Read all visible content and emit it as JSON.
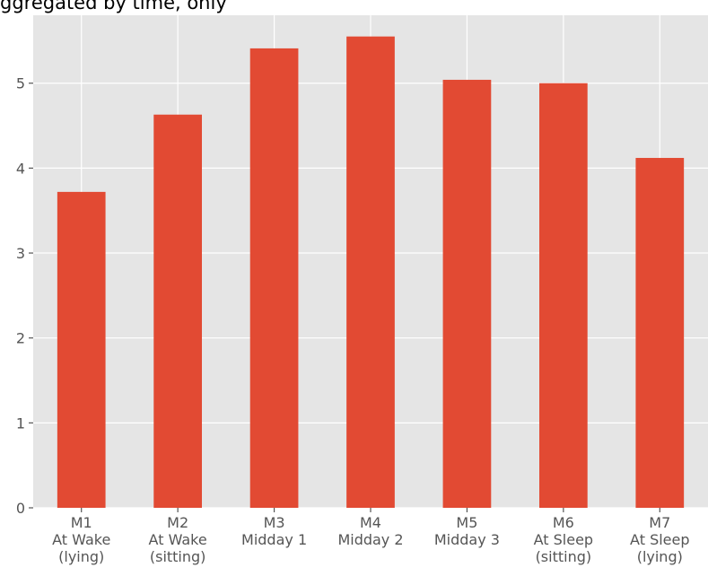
{
  "chart_data": {
    "type": "bar",
    "title": "ggregated by time, only",
    "categories": [
      [
        "M1",
        "At Wake",
        "(lying)"
      ],
      [
        "M2",
        "At Wake",
        "(sitting)"
      ],
      [
        "M3",
        "Midday 1"
      ],
      [
        "M4",
        "Midday 2"
      ],
      [
        "M5",
        "Midday 3"
      ],
      [
        "M6",
        "At Sleep",
        "(sitting)"
      ],
      [
        "M7",
        "At Sleep",
        "(lying)"
      ]
    ],
    "values": [
      3.72,
      4.63,
      5.41,
      5.55,
      5.04,
      5.0,
      4.12
    ],
    "yticks": [
      "0",
      "1",
      "2",
      "3",
      "4",
      "5"
    ],
    "ylim": [
      0,
      5.8
    ],
    "xlabel": "",
    "ylabel": "",
    "grid": true,
    "colors": {
      "bar": "#E24A33",
      "plot_background": "#E5E5E5",
      "grid": "#FFFFFF",
      "tick_label": "#555555"
    }
  }
}
